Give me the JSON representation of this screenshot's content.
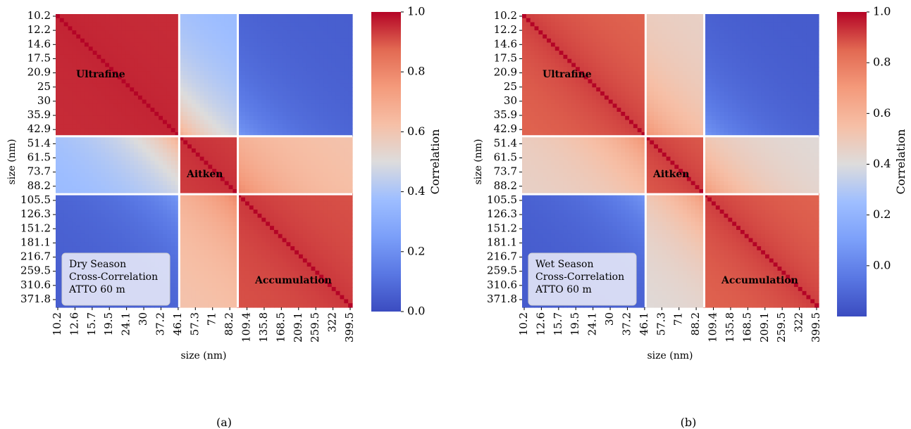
{
  "chart_data": [
    {
      "type": "heatmap",
      "panel_label": "(a)",
      "xlabel": "size (nm)",
      "ylabel": "size (nm)",
      "colorbar_label": "Correlation",
      "colorbar_ticks": [
        "0.0",
        "0.2",
        "0.4",
        "0.6",
        "0.8",
        "1.0"
      ],
      "colorbar_range": [
        0.0,
        1.0
      ],
      "colormap": "coolwarm",
      "x_tick_labels": [
        "10.2",
        "12.6",
        "15.7",
        "19.5",
        "24.1",
        "30",
        "37.2",
        "46.1",
        "57.3",
        "71",
        "88.2",
        "109.4",
        "135.8",
        "168.5",
        "209.1",
        "259.5",
        "322",
        "399.5"
      ],
      "y_tick_labels": [
        "10.2",
        "12.2",
        "14.6",
        "17.5",
        "20.9",
        "25",
        "30",
        "35.9",
        "42.9",
        "51.4",
        "61.5",
        "73.7",
        "88.2",
        "105.5",
        "126.3",
        "151.2",
        "181.1",
        "216.7",
        "259.5",
        "310.6",
        "371.8"
      ],
      "mode_boundaries_nm": [
        47.0,
        97.0
      ],
      "mode_labels": [
        "Ultrafine",
        "Aitken",
        "Accumulation"
      ],
      "box_lines": [
        "Dry Season",
        "Cross-Correlation",
        "ATTO 60 m"
      ],
      "block_correlation": {
        "modes": [
          "Ultrafine",
          "Aitken",
          "Accumulation"
        ],
        "values": [
          [
            0.95,
            0.35,
            0.05
          ],
          [
            0.35,
            0.92,
            0.6
          ],
          [
            0.05,
            0.6,
            0.9
          ]
        ]
      }
    },
    {
      "type": "heatmap",
      "panel_label": "(b)",
      "xlabel": "size (nm)",
      "ylabel": "size (nm)",
      "colorbar_label": "Correlation",
      "colorbar_ticks": [
        "0.0",
        "0.2",
        "0.4",
        "0.6",
        "0.8",
        "1.0"
      ],
      "colorbar_range": [
        -0.2,
        1.0
      ],
      "colormap": "coolwarm",
      "x_tick_labels": [
        "10.2",
        "12.6",
        "15.7",
        "19.5",
        "24.1",
        "30",
        "37.2",
        "46.1",
        "57.3",
        "71",
        "88.2",
        "109.4",
        "135.8",
        "168.5",
        "209.1",
        "259.5",
        "322",
        "399.5"
      ],
      "y_tick_labels": [
        "10.2",
        "12.2",
        "14.6",
        "17.5",
        "20.9",
        "25",
        "30",
        "35.9",
        "42.9",
        "51.4",
        "61.5",
        "73.7",
        "88.2",
        "105.5",
        "126.3",
        "151.2",
        "181.1",
        "216.7",
        "259.5",
        "310.6",
        "371.8"
      ],
      "mode_boundaries_nm": [
        47.0,
        97.0
      ],
      "mode_labels": [
        "Ultrafine",
        "Aitken",
        "Accumulation"
      ],
      "box_lines": [
        "Wet Season",
        "Cross-Correlation",
        "ATTO 60 m"
      ],
      "block_correlation": {
        "modes": [
          "Ultrafine",
          "Aitken",
          "Accumulation"
        ],
        "values": [
          [
            0.85,
            0.45,
            -0.15
          ],
          [
            0.45,
            0.85,
            0.4
          ],
          [
            -0.15,
            0.4,
            0.85
          ]
        ]
      }
    }
  ]
}
